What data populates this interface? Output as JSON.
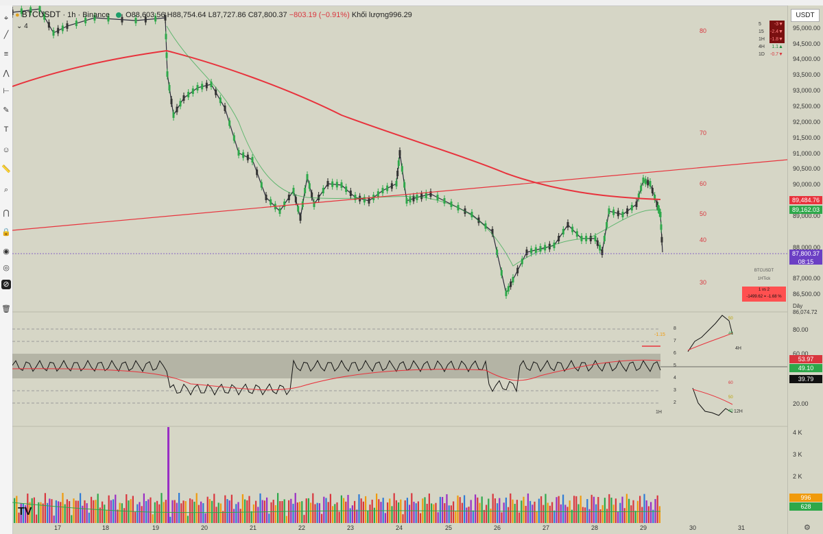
{
  "symbol": {
    "name": "BTCUSDT",
    "interval": "1h",
    "exchange": "Binance"
  },
  "legend": {
    "open": "O88,603.56",
    "high": "H88,754.64",
    "low": "L87,727.86",
    "close": "C87,800.37",
    "change": "−803.19 (−0.91%)",
    "volume": "Khối lượng996.29",
    "collapse": "4"
  },
  "currency_button": "USDT",
  "price_ticks": [
    "95,000.00",
    "94,500.00",
    "94,000.00",
    "93,500.00",
    "93,000.00",
    "92,500.00",
    "92,000.00",
    "91,500.00",
    "91,000.00",
    "90,500.00",
    "90,000.00",
    "89,000.00",
    "88,000.00",
    "87,000.00",
    "86,500.00",
    "86,074.72"
  ],
  "price_tags": {
    "ma_slow": {
      "text": "89,484.76",
      "color": "#e8323c"
    },
    "ma_fast": {
      "text": "89,162.03",
      "color": "#2ea84a"
    },
    "last": {
      "text": "87,800.37",
      "time": "08:15",
      "color": "#6b3fc4"
    }
  },
  "rsi_levels": [
    "80",
    "70",
    "60",
    "50",
    "40",
    "30"
  ],
  "mtf_table": [
    {
      "tf": "5",
      "value": "-3▼"
    },
    {
      "tf": "15",
      "value": "-2.4▼"
    },
    {
      "tf": "1H",
      "value": "-1.8▼"
    },
    {
      "tf": "4H",
      "value": "1.1▲"
    },
    {
      "tf": "1D",
      "value": "-0.7▼"
    }
  ],
  "compare_box": {
    "symbol": "BTCUSDT",
    "src": "1HTick",
    "title": "1 vs 2",
    "result": "-1499.62 = -1.68 %"
  },
  "osc_axis": {
    "ticks": [
      "80.00",
      "60.00",
      "20.00"
    ],
    "tags": [
      {
        "text": "53.97",
        "color": "#d9363e"
      },
      {
        "text": "49.10",
        "color": "#2ea84a"
      },
      {
        "text": "39.79",
        "color": "#111111"
      }
    ]
  },
  "osc_scale": [
    "8",
    "7",
    "6",
    "5",
    "4",
    "3",
    "2"
  ],
  "osc_labels": {
    "main_tf": "1H",
    "tf_4h": "4H",
    "tf_12h": "12H",
    "marker": "-1.15"
  },
  "mini_4h": {
    "levels": [
      "50",
      "40"
    ]
  },
  "mini_12h": {
    "levels": [
      "60",
      "50",
      "40"
    ]
  },
  "volume_axis": {
    "ticks": [
      "4 K",
      "3 K",
      "2 K"
    ],
    "tags": [
      {
        "text": "996",
        "color": "#f09a0c"
      },
      {
        "text": "628",
        "color": "#2ea84a"
      }
    ]
  },
  "dates": [
    "17",
    "18",
    "19",
    "20",
    "21",
    "22",
    "23",
    "24",
    "25",
    "26",
    "27",
    "28",
    "29",
    "30",
    "31"
  ],
  "axis_partial_label": "Dây"
}
